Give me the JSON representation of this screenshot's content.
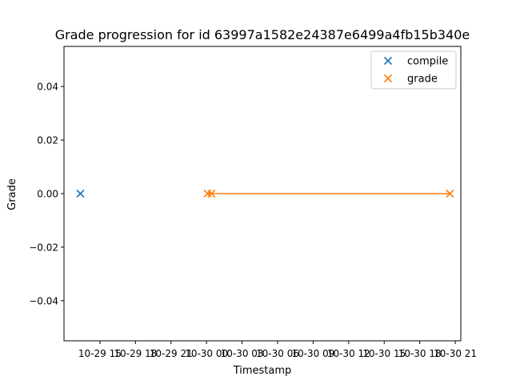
{
  "chart_data": {
    "type": "scatter",
    "title": "Grade progression for id 63997a1582e24387e6499a4fb15b340e",
    "xlabel": "Timestamp",
    "ylabel": "Grade",
    "ylim": [
      -0.055,
      0.055
    ],
    "xlim": [
      "10-29 11:58",
      "10-30 21:28"
    ],
    "x_ticks": [
      {
        "label": "10-29 15",
        "at": "10-29 15:00"
      },
      {
        "label": "10-29 18",
        "at": "10-29 18:00"
      },
      {
        "label": "10-29 21",
        "at": "10-29 21:00"
      },
      {
        "label": "10-30 00",
        "at": "10-30 00:00"
      },
      {
        "label": "10-30 03",
        "at": "10-30 03:00"
      },
      {
        "label": "10-30 06",
        "at": "10-30 06:00"
      },
      {
        "label": "10-30 09",
        "at": "10-30 09:00"
      },
      {
        "label": "10-30 12",
        "at": "10-30 12:00"
      },
      {
        "label": "10-30 15",
        "at": "10-30 15:00"
      },
      {
        "label": "10-30 18",
        "at": "10-30 18:00"
      },
      {
        "label": "10-30 21",
        "at": "10-30 21:00"
      }
    ],
    "y_ticks": [
      "0.04",
      "0.02",
      "0.00",
      "−0.02",
      "−0.04"
    ],
    "y_tick_values": [
      0.04,
      0.02,
      0.0,
      -0.02,
      -0.04
    ],
    "grid": false,
    "legend_position": "top-right",
    "series": [
      {
        "name": "compile",
        "color": "#1f77b4",
        "marker": "x",
        "line": false,
        "points": [
          {
            "x": "10-29 13:21",
            "y": 0.0
          }
        ]
      },
      {
        "name": "grade",
        "color": "#ff7f0e",
        "marker": "x",
        "line": true,
        "points": [
          {
            "x": "10-30 00:05",
            "y": 0.0
          },
          {
            "x": "10-30 00:25",
            "y": 0.0
          },
          {
            "x": "10-30 20:33",
            "y": 0.0
          }
        ]
      }
    ]
  }
}
